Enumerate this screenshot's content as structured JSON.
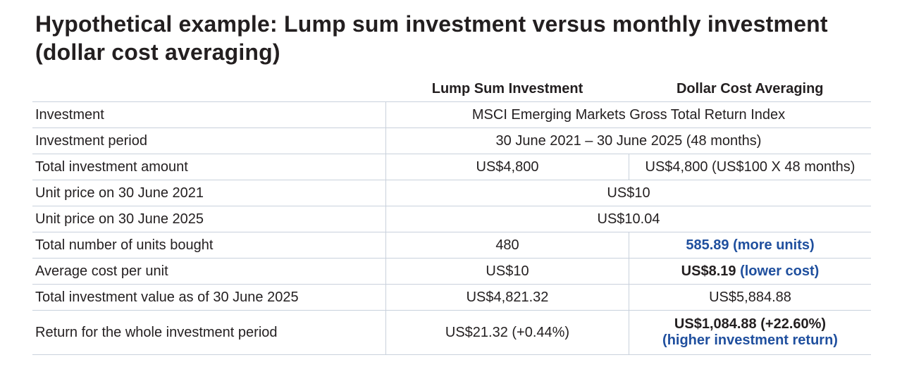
{
  "title_lines": [
    "Hypothetical example: Lump sum investment versus monthly investment",
    "(dollar cost averaging)"
  ],
  "table": {
    "header": [
      "Lump Sum Investment",
      "Dollar Cost Averaging"
    ],
    "rows": [
      {
        "label": "Investment",
        "both": "MSCI Emerging Markets Gross Total Return Index"
      },
      {
        "label": "Investment period",
        "both": "30 June 2021 – 30 June 2025 (48 months)"
      },
      {
        "label": "Total investment amount",
        "lump_sum": "US$4,800",
        "dca": "US$4,800 (US$100 X 48 months)"
      },
      {
        "label": "Unit price on 30 June 2021",
        "both": "US$10"
      },
      {
        "label": "Unit price on 30 June 2025",
        "both": "US$10.04"
      },
      {
        "label": "Total number of units bought",
        "lump_sum": "480",
        "dca": {
          "value": "585.89",
          "note": "(more units)"
        }
      },
      {
        "label": "Average cost per unit",
        "lump_sum": "US$10",
        "dca": {
          "value": "US$8.19",
          "note": "(lower cost)"
        }
      },
      {
        "label": "Total investment value as of 30 June 2025",
        "lump_sum": "US$4,821.32",
        "dca": "US$5,884.88"
      },
      {
        "label": "Return for the whole investment period",
        "lump_sum": "US$21.32 (+0.44%)",
        "dca": {
          "value": "US$1,084.88 (+22.60%)",
          "note": "(higher investment return)"
        }
      }
    ]
  }
}
